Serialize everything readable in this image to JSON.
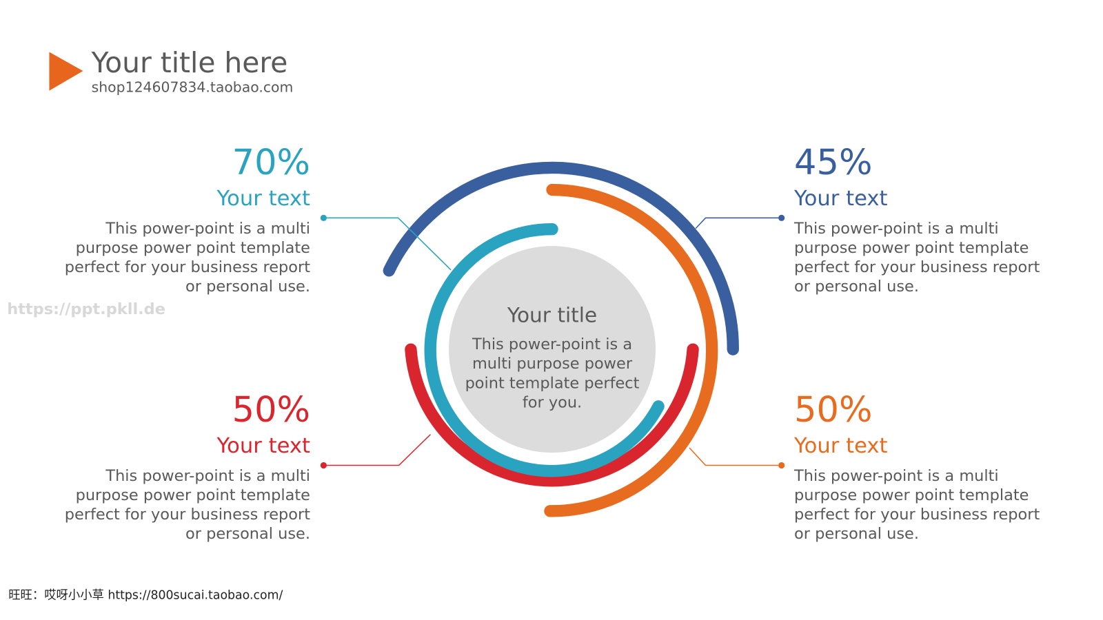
{
  "header": {
    "title": "Your title here",
    "subtitle": "shop124607834.taobao.com"
  },
  "center": {
    "title": "Your title",
    "lines": [
      "This power-point is a",
      "multi purpose power",
      "point template perfect",
      "for you."
    ]
  },
  "items": [
    {
      "percent": "70%",
      "heading": "Your text",
      "lines": [
        "This power-point is a multi",
        "purpose power point template",
        "perfect for your business report",
        "or personal use."
      ]
    },
    {
      "percent": "45%",
      "heading": "Your text",
      "lines": [
        "This power-point is a multi",
        "purpose power point template",
        "perfect for your business report",
        "or personal use."
      ]
    },
    {
      "percent": "50%",
      "heading": "Your text",
      "lines": [
        "This power-point is a multi",
        "purpose power point template",
        "perfect for your business report",
        "or personal use."
      ]
    },
    {
      "percent": "50%",
      "heading": "Your text",
      "lines": [
        "This power-point is a multi",
        "purpose power point template",
        "perfect for your business report",
        "or personal use."
      ]
    }
  ],
  "watermark": "https://ppt.pkll.de",
  "footer": "旺旺：哎呀小小草 https://800sucai.taobao.com/"
}
